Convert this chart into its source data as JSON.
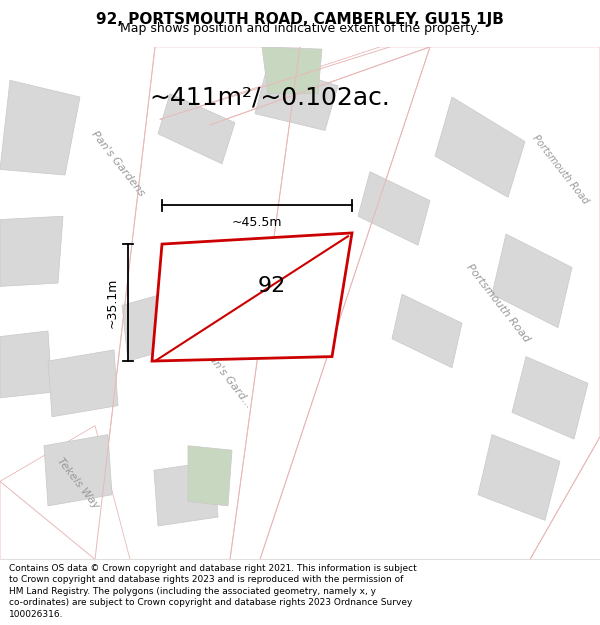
{
  "title_line1": "92, PORTSMOUTH ROAD, CAMBERLEY, GU15 1JB",
  "title_line2": "Map shows position and indicative extent of the property.",
  "area_label": "~411m²/~0.102ac.",
  "property_number": "92",
  "width_label": "~45.5m",
  "height_label": "~35.1m",
  "footer_lines": [
    "Contains OS data © Crown copyright and database right 2021. This information is subject",
    "to Crown copyright and database rights 2023 and is reproduced with the permission of",
    "HM Land Registry. The polygons (including the associated geometry, namely x, y",
    "co-ordinates) are subject to Crown copyright and database rights 2023 Ordnance Survey",
    "100026316."
  ],
  "map_bg": "#f0efed",
  "road_color_light": "#e8b8b8",
  "road_white": "#ffffff",
  "block_fill": "#d8d8d8",
  "block_edge": "#c8c8c8",
  "green_fill": "#c8d8c0",
  "property_edge": "#cc0000",
  "road_label_color": "#999999",
  "title_fontsize": 11,
  "subtitle_fontsize": 9,
  "area_fontsize": 18,
  "prop_num_fontsize": 16,
  "dim_fontsize": 9,
  "road_label_fontsize": 8,
  "footer_fontsize": 6.5
}
